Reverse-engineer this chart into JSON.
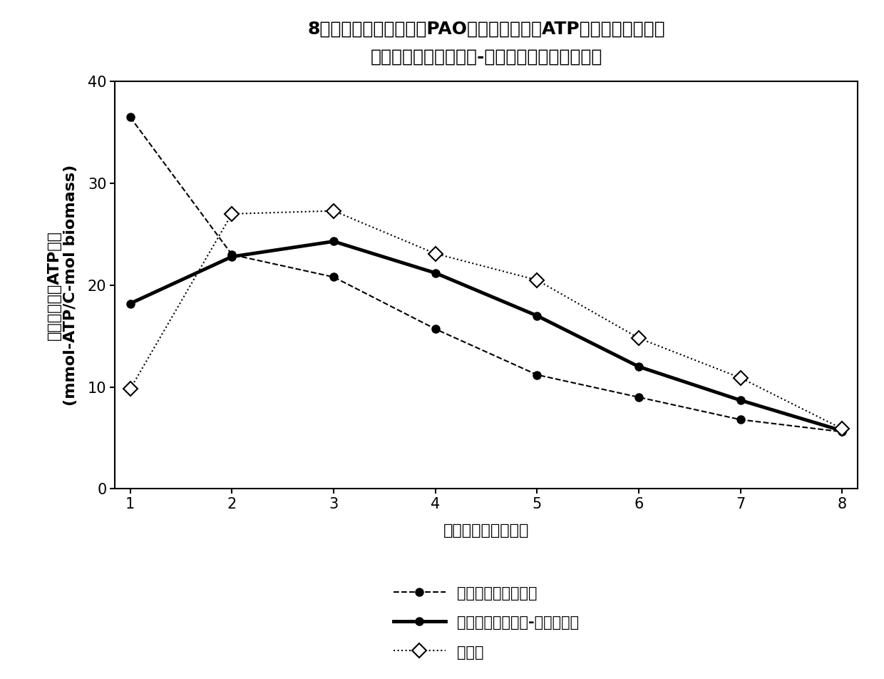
{
  "title_line1": "8天持续厌氧饥饿实验中PAO利用聚磷酸产生ATP的量的实测值与传",
  "title_line2": "统模型和阶段细胞维护-凋亡模型模拟结果的比较",
  "xlabel": "厌氧饥饿时间（日）",
  "ylabel_line1": "来自聚磷酸的ATP产量",
  "ylabel_line2": "(mmol-ATP/C-mol biomass)",
  "xdata": [
    1,
    2,
    3,
    4,
    5,
    6,
    7,
    8
  ],
  "traditional_model": [
    36.5,
    23.0,
    20.8,
    15.7,
    11.2,
    9.0,
    6.8,
    5.6
  ],
  "staged_model": [
    18.2,
    22.8,
    24.3,
    21.2,
    17.0,
    12.0,
    8.7,
    5.7
  ],
  "measured": [
    9.8,
    27.0,
    27.3,
    23.1,
    20.5,
    14.8,
    10.9,
    5.9
  ],
  "ylim": [
    0,
    40
  ],
  "xlim": [
    1,
    8
  ],
  "yticks": [
    0,
    10,
    20,
    30,
    40
  ],
  "xticks": [
    1,
    2,
    3,
    4,
    5,
    6,
    7,
    8
  ],
  "legend_traditional": "模拟值（传统模型）",
  "legend_staged": "模拟值（阶段维护-凋亡模型）",
  "legend_measured": "实测值",
  "background_color": "#ffffff",
  "line_color": "#000000",
  "title_fontsize": 18,
  "label_fontsize": 16,
  "tick_fontsize": 15,
  "legend_fontsize": 15
}
